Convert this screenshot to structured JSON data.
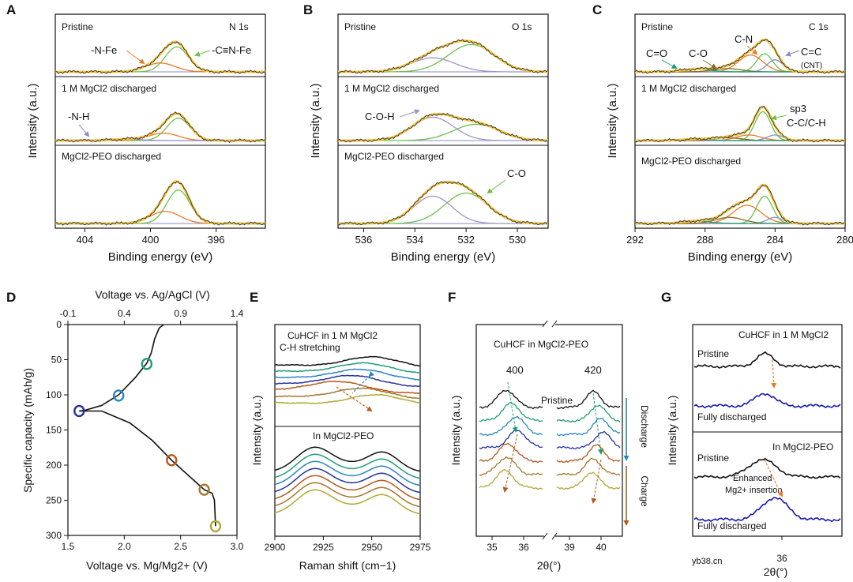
{
  "watermark": "yb38.cn",
  "chart_data": [
    {
      "id": "A",
      "type": "line",
      "letter": "A",
      "corner_label": "N 1s",
      "xlabel": "Binding energy (eV)",
      "ylabel": "Intensity (a.u.)",
      "xlim": [
        405.8,
        393.0
      ],
      "x_ticks": [
        404,
        400,
        396
      ],
      "panels": [
        {
          "label": "Pristine",
          "baseline": 0.88,
          "total_x": 398.2,
          "peaks": [
            {
              "center": 398.4,
              "width": 0.7,
              "height": 0.62,
              "color": "#6CC04A"
            },
            {
              "center": 399.4,
              "width": 0.9,
              "height": 0.22,
              "color": "#E87B2A"
            }
          ]
        },
        {
          "label": "1 M MgCl2 discharged",
          "baseline": 0.88,
          "peaks": [
            {
              "center": 398.3,
              "width": 0.7,
              "height": 0.48,
              "color": "#6CC04A"
            },
            {
              "center": 399.2,
              "width": 0.9,
              "height": 0.16,
              "color": "#E87B2A"
            },
            {
              "center": 401.5,
              "width": 0.9,
              "height": 0.03,
              "color": "#8C8CC8"
            }
          ]
        },
        {
          "label": "MgCl2-PEO discharged",
          "baseline": 0.88,
          "peaks": [
            {
              "center": 398.3,
              "width": 0.7,
              "height": 0.55,
              "color": "#6CC04A"
            },
            {
              "center": 399.1,
              "width": 0.9,
              "height": 0.2,
              "color": "#E87B2A"
            }
          ]
        }
      ],
      "annotations": [
        {
          "text": "-N-Fe",
          "color": "#E87B2A"
        },
        {
          "text": "-C≡N-Fe",
          "color": "#111111"
        },
        {
          "text": "-N-H",
          "color": "#8C8CC8"
        }
      ]
    },
    {
      "id": "B",
      "type": "line",
      "letter": "B",
      "corner_label": "O 1s",
      "xlabel": "Binding energy (eV)",
      "ylabel": "Intensity (a.u.)",
      "xlim": [
        537.0,
        528.8
      ],
      "x_ticks": [
        536,
        534,
        532,
        530
      ],
      "panels": [
        {
          "label": "Pristine",
          "baseline": 0.9,
          "peaks": [
            {
              "center": 531.8,
              "width": 0.9,
              "height": 0.68,
              "color": "#6CC04A"
            },
            {
              "center": 533.3,
              "width": 0.85,
              "height": 0.35,
              "color": "#9B95C9"
            }
          ]
        },
        {
          "label": "1 M MgCl2 discharged",
          "baseline": 0.9,
          "peaks": [
            {
              "center": 531.6,
              "width": 0.9,
              "height": 0.35,
              "color": "#6CC04A"
            },
            {
              "center": 533.3,
              "width": 0.8,
              "height": 0.5,
              "color": "#9B95C9"
            }
          ]
        },
        {
          "label": "MgCl2-PEO discharged",
          "baseline": 0.9,
          "peaks": [
            {
              "center": 532.0,
              "width": 0.85,
              "height": 0.5,
              "color": "#6CC04A"
            },
            {
              "center": 533.3,
              "width": 0.75,
              "height": 0.45,
              "color": "#9B95C9"
            }
          ]
        }
      ],
      "annotations": [
        {
          "text": "C-O-H",
          "color": "#7A72B8"
        },
        {
          "text": "C-O",
          "color": "#6CC04A"
        }
      ]
    },
    {
      "id": "C",
      "type": "line",
      "letter": "C",
      "corner_label": "C 1s",
      "xlabel": "Binding energy (eV)",
      "ylabel": "Intensity (a.u.)",
      "xlim": [
        292,
        280
      ],
      "x_ticks": [
        292,
        288,
        284,
        280
      ],
      "panels": [
        {
          "label": "Pristine",
          "baseline": 0.9,
          "peaks": [
            {
              "center": 284.6,
              "width": 0.45,
              "height": 0.45,
              "color": "#6CC04A"
            },
            {
              "center": 285.4,
              "width": 0.7,
              "height": 0.42,
              "color": "#E87B2A"
            },
            {
              "center": 284.0,
              "width": 0.45,
              "height": 0.3,
              "color": "#8C8CC8"
            },
            {
              "center": 286.7,
              "width": 0.8,
              "height": 0.08,
              "color": "#8B6A1E"
            },
            {
              "center": 288.5,
              "width": 0.8,
              "height": 0.07,
              "color": "#1A9E77"
            }
          ]
        },
        {
          "label": "1 M MgCl2 discharged",
          "baseline": 0.92,
          "peaks": [
            {
              "center": 284.7,
              "width": 0.45,
              "height": 0.62,
              "color": "#6CC04A"
            },
            {
              "center": 285.5,
              "width": 0.7,
              "height": 0.12,
              "color": "#E87B2A"
            },
            {
              "center": 284.0,
              "width": 0.45,
              "height": 0.12,
              "color": "#8C8CC8"
            },
            {
              "center": 286.7,
              "width": 0.8,
              "height": 0.06,
              "color": "#8B6A1E"
            },
            {
              "center": 288.5,
              "width": 0.8,
              "height": 0.03,
              "color": "#1A9E77"
            }
          ]
        },
        {
          "label": "MgCl2-PEO discharged",
          "baseline": 0.9,
          "peaks": [
            {
              "center": 284.6,
              "width": 0.45,
              "height": 0.45,
              "color": "#6CC04A"
            },
            {
              "center": 285.6,
              "width": 0.8,
              "height": 0.3,
              "color": "#E87B2A"
            },
            {
              "center": 284.0,
              "width": 0.45,
              "height": 0.1,
              "color": "#8C8CC8"
            },
            {
              "center": 286.6,
              "width": 0.8,
              "height": 0.1,
              "color": "#8B6A1E"
            },
            {
              "center": 288.5,
              "width": 0.8,
              "height": 0.04,
              "color": "#1A9E77"
            }
          ]
        }
      ],
      "annotations": [
        {
          "text": "C=O",
          "color": "#1A9E77"
        },
        {
          "text": "C-O",
          "color": "#8B6A1E"
        },
        {
          "text": "C-N",
          "color": "#E87B2A"
        },
        {
          "text": "C=C",
          "color": "#7A72B8"
        },
        {
          "text": "(CNT)",
          "color": "#7A72B8"
        },
        {
          "text": "sp3",
          "color": "#5BAA28"
        },
        {
          "text": "C-C/C-H",
          "color": "#5BAA28"
        }
      ]
    },
    {
      "id": "D",
      "type": "line",
      "letter": "D",
      "xlabel": "Voltage vs. Mg/Mg2+ (V)",
      "x2label": "Voltage vs. Ag/AgCl (V)",
      "ylabel": "Specific capacity (mAh/g)",
      "xlim": [
        1.5,
        3.0
      ],
      "ylim": [
        0,
        300
      ],
      "y_inverted": true,
      "x_ticks": [
        1.5,
        2.0,
        2.5,
        3.0
      ],
      "x2_ticks": [
        -0.1,
        0.4,
        0.9,
        1.4
      ],
      "y_ticks": [
        0,
        50,
        100,
        150,
        200,
        250,
        300
      ],
      "curve_charge": [
        [
          2.35,
          0
        ],
        [
          2.31,
          5
        ],
        [
          2.27,
          20
        ],
        [
          2.24,
          40
        ],
        [
          2.2,
          55
        ],
        [
          2.1,
          75
        ],
        [
          1.95,
          100
        ],
        [
          1.8,
          115
        ],
        [
          1.65,
          122
        ],
        [
          1.6,
          123
        ]
      ],
      "curve_discharge": [
        [
          1.6,
          123
        ],
        [
          1.8,
          123
        ],
        [
          2.05,
          140
        ],
        [
          2.25,
          165
        ],
        [
          2.42,
          193
        ],
        [
          2.62,
          222
        ],
        [
          2.71,
          235
        ],
        [
          2.78,
          240
        ],
        [
          2.8,
          250
        ],
        [
          2.81,
          287
        ]
      ],
      "markers": [
        {
          "x": 2.2,
          "y": 56,
          "color": "#1F9E78"
        },
        {
          "x": 1.95,
          "y": 101,
          "color": "#2A85C0"
        },
        {
          "x": 1.6,
          "y": 123,
          "color": "#26329E"
        },
        {
          "x": 2.42,
          "y": 193,
          "color": "#B5591C"
        },
        {
          "x": 2.71,
          "y": 235,
          "color": "#A6762B"
        },
        {
          "x": 2.81,
          "y": 287,
          "color": "#B1A833"
        }
      ]
    },
    {
      "id": "E",
      "type": "line",
      "letter": "E",
      "xlabel": "Raman shift (cm−1)",
      "ylabel": "Intensity (a.u.)",
      "xlim": [
        2900,
        2975
      ],
      "x_ticks": [
        2900,
        2925,
        2950,
        2975
      ],
      "top_label": "CuHCF in 1 M MgCl2",
      "sub_label": "C-H stretching",
      "bottom_label": "In MgCl2-PEO",
      "series_colors": [
        "#111111",
        "#1F9E78",
        "#2A85C0",
        "#26329E",
        "#B5591C",
        "#A6762B",
        "#B1A833"
      ],
      "top_peak_centers": [
        2950,
        2946,
        2944,
        2940,
        2933,
        2945,
        2952
      ],
      "bottom_peaks": [
        2920,
        2956
      ]
    },
    {
      "id": "F",
      "type": "line",
      "letter": "F",
      "xlabel": "2θ(°)",
      "ylabel": "Intensity (a.u.)",
      "x_ticks_left": [
        35,
        36
      ],
      "x_ticks_right": [
        39,
        40
      ],
      "title": "CuHCF in MgCl2-PEO",
      "peak_labels": [
        "400",
        "420"
      ],
      "pristine_label": "Pristine",
      "discharge_label": "Discharge",
      "charge_label": "Charge",
      "series_colors": [
        "#111111",
        "#1F9E78",
        "#2A85C0",
        "#26329E",
        "#B5591C",
        "#A6762B",
        "#B1A833"
      ]
    },
    {
      "id": "G",
      "type": "line",
      "letter": "G",
      "xlabel": "2θ(°)",
      "ylabel": "Intensity (a.u.)",
      "x_ticks": [
        36
      ],
      "top_title": "CuHCF in 1 M MgCl2",
      "bottom_title": "In MgCl2-PEO",
      "pristine_label": "Pristine",
      "discharged_label": "Fully discharged",
      "enhanced_label": "Enhanced",
      "insertion_label": "Mg2+ insertion"
    }
  ]
}
